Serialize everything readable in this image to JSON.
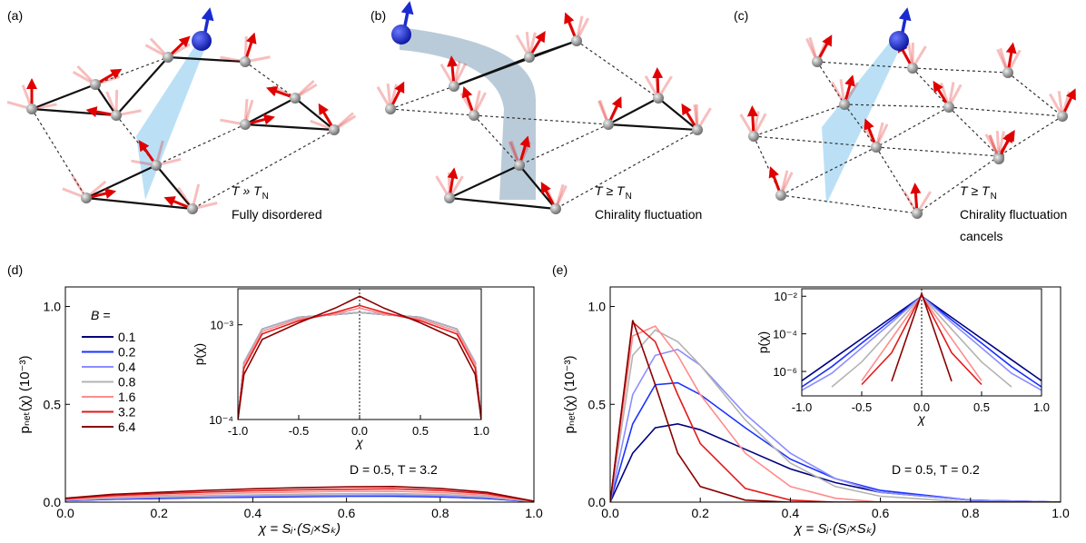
{
  "panels": [
    {
      "label": "(a)",
      "condition": "T » T",
      "sub": "N",
      "caption": [
        "Fully disordered"
      ]
    },
    {
      "label": "(b)",
      "condition": "T ≥ T",
      "sub": "N",
      "caption": [
        "Chirality fluctuation"
      ]
    },
    {
      "label": "(c)",
      "condition": "T ≥ T",
      "sub": "N",
      "caption": [
        "Chirality fluctuation",
        "cancels"
      ]
    }
  ],
  "chart_data": [
    {
      "type": "line",
      "panel": "(d)",
      "xlabel": "χ = Sᵢ·(Sⱼ×Sₖ)",
      "ylabel": "pₙₑₜ(χ) (10⁻³)",
      "annotation": "D = 0.5, T = 3.2",
      "legend_title": "B =",
      "legend": "left",
      "xlim": [
        0,
        1
      ],
      "ylim": [
        0,
        1.1
      ],
      "xticks": [
        {
          "value": 0,
          "label": "0.0"
        },
        {
          "value": 0.2,
          "label": "0.2"
        },
        {
          "value": 0.4,
          "label": "0.4"
        },
        {
          "value": 0.6,
          "label": "0.6"
        },
        {
          "value": 0.8,
          "label": "0.8"
        },
        {
          "value": 1,
          "label": "1.0"
        }
      ],
      "yticks": [
        {
          "value": 0,
          "label": "0.0"
        },
        {
          "value": 0.5,
          "label": "0.5"
        },
        {
          "value": 1,
          "label": "1.0"
        }
      ],
      "x": [
        0,
        0.1,
        0.2,
        0.3,
        0.4,
        0.5,
        0.6,
        0.7,
        0.8,
        0.9,
        1
      ],
      "series": [
        {
          "name": "0.1",
          "color": "#000080",
          "values": [
            0.008,
            0.015,
            0.019,
            0.023,
            0.026,
            0.028,
            0.03,
            0.03,
            0.027,
            0.019,
            0.002
          ]
        },
        {
          "name": "0.2",
          "color": "#1a33ff",
          "values": [
            0.008,
            0.016,
            0.02,
            0.024,
            0.027,
            0.03,
            0.031,
            0.032,
            0.028,
            0.02,
            0.002
          ]
        },
        {
          "name": "0.4",
          "color": "#8c8cff",
          "values": [
            0.009,
            0.018,
            0.023,
            0.027,
            0.031,
            0.033,
            0.035,
            0.036,
            0.032,
            0.023,
            0.002
          ]
        },
        {
          "name": "0.8",
          "color": "#b3b3b3",
          "values": [
            0.011,
            0.022,
            0.028,
            0.033,
            0.037,
            0.041,
            0.043,
            0.044,
            0.039,
            0.028,
            0.003
          ]
        },
        {
          "name": "1.6",
          "color": "#ff8c8c",
          "values": [
            0.014,
            0.028,
            0.035,
            0.042,
            0.048,
            0.052,
            0.055,
            0.056,
            0.049,
            0.035,
            0.004
          ]
        },
        {
          "name": "3.2",
          "color": "#e31a1a",
          "values": [
            0.017,
            0.034,
            0.043,
            0.051,
            0.058,
            0.063,
            0.066,
            0.068,
            0.06,
            0.043,
            0.004
          ]
        },
        {
          "name": "6.4",
          "color": "#8b0000",
          "values": [
            0.02,
            0.04,
            0.05,
            0.06,
            0.068,
            0.074,
            0.078,
            0.08,
            0.07,
            0.05,
            0.005
          ]
        }
      ]
    },
    {
      "type": "line",
      "yscale": "log",
      "xlabel": "χ",
      "ylabel": "p(χ)",
      "xlim": [
        -1,
        1
      ],
      "ylim": [
        0.0001,
        0.0024
      ],
      "xticks": [
        {
          "value": -1,
          "label": "-1.0"
        },
        {
          "value": -0.5,
          "label": "-0.5"
        },
        {
          "value": 0,
          "label": "0.0"
        },
        {
          "value": 0.5,
          "label": "0.5"
        },
        {
          "value": 1,
          "label": "1.0"
        }
      ],
      "yticks": [
        {
          "value": 0.0001,
          "label": "10⁻⁴"
        },
        {
          "value": 0.001,
          "label": "10⁻³"
        }
      ],
      "x": [
        -1,
        -0.95,
        -0.8,
        -0.5,
        -0.2,
        0,
        0.2,
        0.5,
        0.8,
        0.95,
        1
      ],
      "series": [
        {
          "color": "#000080",
          "values": [
            0.0001,
            0.0004,
            0.0009,
            0.0012,
            0.00128,
            0.00135,
            0.00128,
            0.0012,
            0.0009,
            0.0004,
            0.0001
          ]
        },
        {
          "color": "#1a33ff",
          "values": [
            0.0001,
            0.0004,
            0.0009,
            0.0012,
            0.00128,
            0.00135,
            0.00128,
            0.0012,
            0.0009,
            0.0004,
            0.0001
          ]
        },
        {
          "color": "#8c8cff",
          "values": [
            0.0001,
            0.0004,
            0.0009,
            0.0012,
            0.00128,
            0.00135,
            0.00128,
            0.0012,
            0.0009,
            0.0004,
            0.0001
          ]
        },
        {
          "color": "#b3b3b3",
          "values": [
            0.0001,
            0.0004,
            0.0009,
            0.0012,
            0.00128,
            0.00135,
            0.00128,
            0.0012,
            0.0009,
            0.0004,
            0.0001
          ]
        },
        {
          "color": "#ff8c8c",
          "values": [
            0.0001,
            0.00038,
            0.00085,
            0.00115,
            0.0013,
            0.0015,
            0.0013,
            0.00115,
            0.00085,
            0.00038,
            0.0001
          ]
        },
        {
          "color": "#e31a1a",
          "values": [
            0.0001,
            0.00035,
            0.0008,
            0.0011,
            0.00135,
            0.0016,
            0.00135,
            0.0011,
            0.0008,
            0.00035,
            0.0001
          ]
        },
        {
          "color": "#8b0000",
          "values": [
            0.0001,
            0.0003,
            0.0007,
            0.00105,
            0.0015,
            0.002,
            0.0015,
            0.00105,
            0.0007,
            0.0003,
            0.0001
          ]
        }
      ]
    },
    {
      "type": "line",
      "panel": "(e)",
      "xlabel": "χ = Sᵢ·(Sⱼ×Sₖ)",
      "ylabel": "pₙₑₜ(χ) (10⁻³)",
      "annotation": "D = 0.5, T = 0.2",
      "xlim": [
        0,
        1
      ],
      "ylim": [
        0,
        1.1
      ],
      "xticks": [
        {
          "value": 0,
          "label": "0.0"
        },
        {
          "value": 0.2,
          "label": "0.2"
        },
        {
          "value": 0.4,
          "label": "0.4"
        },
        {
          "value": 0.6,
          "label": "0.6"
        },
        {
          "value": 0.8,
          "label": "0.8"
        },
        {
          "value": 1,
          "label": "1.0"
        }
      ],
      "yticks": [
        {
          "value": 0,
          "label": "0.0"
        },
        {
          "value": 0.5,
          "label": "0.5"
        },
        {
          "value": 1,
          "label": "1.0"
        }
      ],
      "x": [
        0,
        0.05,
        0.1,
        0.15,
        0.2,
        0.3,
        0.4,
        0.5,
        0.6,
        0.8,
        1
      ],
      "series": [
        {
          "color": "#000080",
          "values": [
            0,
            0.25,
            0.38,
            0.4,
            0.37,
            0.27,
            0.17,
            0.1,
            0.05,
            0.01,
            0
          ]
        },
        {
          "color": "#1a33ff",
          "values": [
            0,
            0.4,
            0.6,
            0.61,
            0.55,
            0.38,
            0.22,
            0.12,
            0.06,
            0.01,
            0
          ]
        },
        {
          "color": "#8c8cff",
          "values": [
            0,
            0.55,
            0.75,
            0.78,
            0.7,
            0.45,
            0.25,
            0.12,
            0.05,
            0.01,
            0
          ]
        },
        {
          "color": "#b3b3b3",
          "values": [
            0,
            0.75,
            0.88,
            0.82,
            0.7,
            0.42,
            0.2,
            0.08,
            0.03,
            0,
            0
          ]
        },
        {
          "color": "#ff8c8c",
          "values": [
            0,
            0.85,
            0.9,
            0.75,
            0.55,
            0.25,
            0.08,
            0.02,
            0,
            0,
            0
          ]
        },
        {
          "color": "#e31a1a",
          "values": [
            0,
            0.92,
            0.82,
            0.55,
            0.3,
            0.07,
            0.01,
            0,
            0,
            0,
            0
          ]
        },
        {
          "color": "#8b0000",
          "values": [
            0,
            0.93,
            0.6,
            0.25,
            0.08,
            0.01,
            0,
            0,
            0,
            0,
            0
          ]
        }
      ]
    },
    {
      "type": "line",
      "yscale": "log",
      "xlabel": "χ",
      "ylabel": "p(χ)",
      "xlim": [
        -1,
        1
      ],
      "ylim": [
        5e-08,
        0.025
      ],
      "xticks": [
        {
          "value": -1,
          "label": "-1.0"
        },
        {
          "value": -0.5,
          "label": "-0.5"
        },
        {
          "value": 0,
          "label": "0.0"
        },
        {
          "value": 0.5,
          "label": "0.5"
        },
        {
          "value": 1,
          "label": "1.0"
        }
      ],
      "yticks": [
        {
          "value": 1e-06,
          "label": "10⁻⁶"
        },
        {
          "value": 0.0001,
          "label": "10⁻⁴"
        },
        {
          "value": 0.01,
          "label": "10⁻²"
        }
      ],
      "x": [
        -1,
        -0.75,
        -0.5,
        -0.25,
        0,
        0.25,
        0.5,
        0.75,
        1
      ],
      "series": [
        {
          "color": "#000080",
          "values": [
            3.2e-07,
            4.2e-06,
            5.6e-05,
            0.00075,
            0.01,
            0.00075,
            5.6e-05,
            4.2e-06,
            3.2e-07
          ]
        },
        {
          "color": "#1a33ff",
          "values": [
            1.5e-07,
            1.8e-06,
            3.2e-05,
            0.00056,
            0.01,
            0.00056,
            3.2e-05,
            1.8e-06,
            1.5e-07
          ]
        },
        {
          "color": "#8c8cff",
          "values": [
            1e-07,
            8e-07,
            1.8e-05,
            0.0004,
            0.01,
            0.0004,
            1.8e-05,
            8e-07,
            1e-07
          ]
        },
        {
          "color": "#b3b3b3",
          "values": [
            null,
            1.5e-07,
            3.2e-06,
            0.00018,
            0.01,
            0.00018,
            3.2e-06,
            1.5e-07,
            null
          ]
        },
        {
          "color": "#ff8c8c",
          "values": [
            null,
            null,
            3.2e-07,
            5.6e-05,
            0.01,
            5.6e-05,
            3.2e-07,
            null,
            null
          ]
        },
        {
          "color": "#e31a1a",
          "values": [
            null,
            null,
            2e-07,
            1e-05,
            0.012,
            1e-05,
            2e-07,
            null,
            null
          ]
        },
        {
          "color": "#8b0000",
          "values": [
            null,
            null,
            null,
            3e-07,
            0.014,
            3e-07,
            null,
            null,
            null
          ]
        }
      ]
    }
  ]
}
